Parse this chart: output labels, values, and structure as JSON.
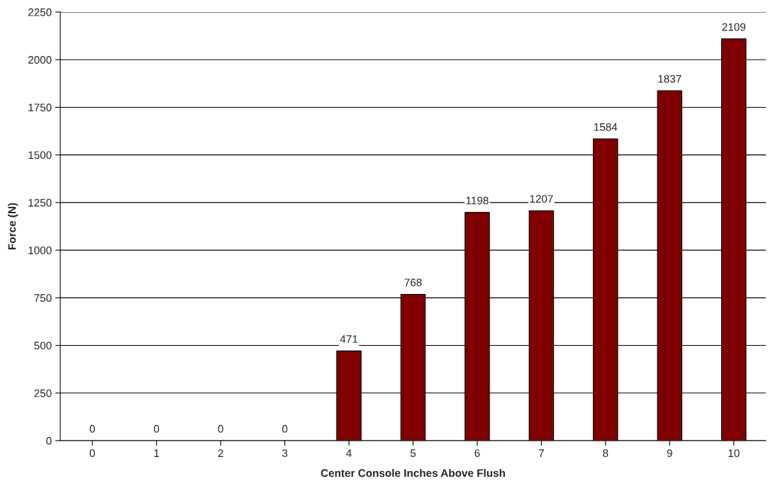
{
  "chart_data": {
    "type": "bar",
    "xlabel": "Center Console Inches Above Flush",
    "ylabel": "Force (N)",
    "categories": [
      "0",
      "1",
      "2",
      "3",
      "4",
      "5",
      "6",
      "7",
      "8",
      "9",
      "10"
    ],
    "values": [
      0,
      0,
      0,
      0,
      471,
      768,
      1198,
      1207,
      1584,
      1837,
      2109
    ],
    "color": "#800000",
    "data_labels": true,
    "ylim": [
      0,
      2250
    ],
    "yticks": [
      0,
      250,
      500,
      750,
      1000,
      1250,
      1500,
      1750,
      2000,
      2250
    ],
    "grid": "y"
  }
}
